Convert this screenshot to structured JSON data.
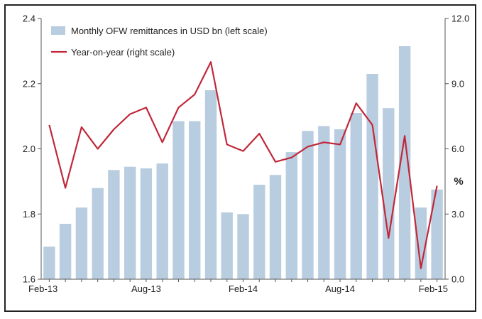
{
  "colors": {
    "bar": "#b9cde0",
    "line": "#c0283a",
    "axis": "#555555",
    "text": "#222222"
  },
  "chart_data": {
    "type": "bar+line",
    "title": "",
    "x": [
      "Feb-13",
      "Mar-13",
      "Apr-13",
      "May-13",
      "Jun-13",
      "Jul-13",
      "Aug-13",
      "Sep-13",
      "Oct-13",
      "Nov-13",
      "Dec-13",
      "Jan-14",
      "Feb-14",
      "Mar-14",
      "Apr-14",
      "May-14",
      "Jun-14",
      "Jul-14",
      "Aug-14",
      "Sep-14",
      "Oct-14",
      "Nov-14",
      "Dec-14",
      "Jan-15",
      "Feb-15"
    ],
    "x_tick_labels": [
      "Feb-13",
      "Aug-13",
      "Feb-14",
      "Aug-14",
      "Feb-15"
    ],
    "series": [
      {
        "name": "Monthly OFW remittances in USD bn (left scale)",
        "type": "bar",
        "axis": "left",
        "values": [
          1.7,
          1.77,
          1.82,
          1.88,
          1.935,
          1.945,
          1.94,
          1.955,
          2.085,
          2.085,
          2.18,
          1.805,
          1.8,
          1.89,
          1.92,
          1.99,
          2.055,
          2.07,
          2.06,
          2.11,
          2.23,
          2.125,
          2.315,
          1.82,
          1.875
        ]
      },
      {
        "name": "Year-on-year (right scale)",
        "type": "line",
        "axis": "right",
        "values": [
          7.1,
          4.2,
          7.0,
          6.0,
          6.9,
          7.6,
          7.9,
          6.3,
          7.9,
          8.5,
          10.0,
          6.2,
          5.9,
          6.7,
          5.4,
          5.6,
          6.1,
          6.3,
          6.2,
          8.1,
          7.1,
          1.9,
          6.6,
          0.5,
          4.3
        ]
      }
    ],
    "y_left": {
      "lim": [
        1.6,
        2.4
      ],
      "ticks": [
        "1.6",
        "1.8",
        "2.0",
        "2.2",
        "2.4"
      ]
    },
    "y_right": {
      "lim": [
        0,
        12
      ],
      "ticks": [
        "0.0",
        "3.0",
        "6.0",
        "9.0",
        "12.0"
      ],
      "unit": "%"
    },
    "legend": {
      "placement": "top-left",
      "entries": [
        "Monthly OFW remittances in USD bn (left scale)",
        "Year-on-year (right scale)"
      ]
    },
    "grid": false
  }
}
